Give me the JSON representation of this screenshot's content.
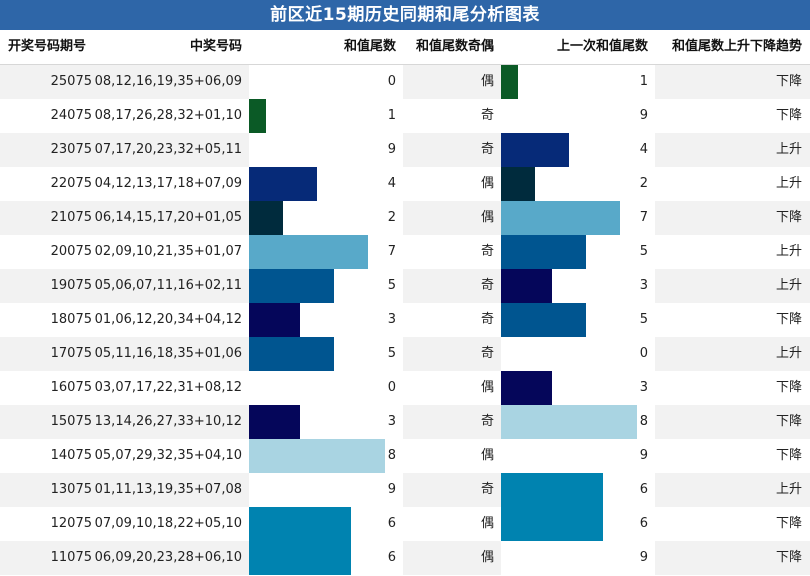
{
  "title": "前区近15期历史同期和尾分析图表",
  "headers": [
    "开奖号码期号",
    "中奖号码",
    "和值尾数",
    "和值尾数奇偶",
    "上一次和值尾数",
    "和值尾数上升下降趋势"
  ],
  "colors": {
    "title_bg": "#2e66a8",
    "tail_colors": {
      "0": "#0b5a26",
      "1": "#0b5a26",
      "2": "#002b3d",
      "3": "#05065a",
      "4": "#062a78",
      "5": "#005590",
      "6": "#0083b0",
      "7": "#58a9c9",
      "8": "#a9d4e2",
      "9": "#ffffff"
    }
  },
  "rows": [
    {
      "period": "25075",
      "numbers": "08,12,16,19,35+06,09",
      "tail": 0,
      "parity": "偶",
      "prev_tail": 1,
      "trend": "下降"
    },
    {
      "period": "24075",
      "numbers": "08,17,26,28,32+01,10",
      "tail": 1,
      "parity": "奇",
      "prev_tail": 9,
      "trend": "下降"
    },
    {
      "period": "23075",
      "numbers": "07,17,20,23,32+05,11",
      "tail": 9,
      "parity": "奇",
      "prev_tail": 4,
      "trend": "上升"
    },
    {
      "period": "22075",
      "numbers": "04,12,13,17,18+07,09",
      "tail": 4,
      "parity": "偶",
      "prev_tail": 2,
      "trend": "上升"
    },
    {
      "period": "21075",
      "numbers": "06,14,15,17,20+01,05",
      "tail": 2,
      "parity": "偶",
      "prev_tail": 7,
      "trend": "下降"
    },
    {
      "period": "20075",
      "numbers": "02,09,10,21,35+01,07",
      "tail": 7,
      "parity": "奇",
      "prev_tail": 5,
      "trend": "上升"
    },
    {
      "period": "19075",
      "numbers": "05,06,07,11,16+02,11",
      "tail": 5,
      "parity": "奇",
      "prev_tail": 3,
      "trend": "上升"
    },
    {
      "period": "18075",
      "numbers": "01,06,12,20,34+04,12",
      "tail": 3,
      "parity": "奇",
      "prev_tail": 5,
      "trend": "下降"
    },
    {
      "period": "17075",
      "numbers": "05,11,16,18,35+01,06",
      "tail": 5,
      "parity": "奇",
      "prev_tail": 0,
      "trend": "上升"
    },
    {
      "period": "16075",
      "numbers": "03,07,17,22,31+08,12",
      "tail": 0,
      "parity": "偶",
      "prev_tail": 3,
      "trend": "下降"
    },
    {
      "period": "15075",
      "numbers": "13,14,26,27,33+10,12",
      "tail": 3,
      "parity": "奇",
      "prev_tail": 8,
      "trend": "下降"
    },
    {
      "period": "14075",
      "numbers": "05,07,29,32,35+04,10",
      "tail": 8,
      "parity": "偶",
      "prev_tail": 9,
      "trend": "下降"
    },
    {
      "period": "13075",
      "numbers": "01,11,13,19,35+07,08",
      "tail": 9,
      "parity": "奇",
      "prev_tail": 6,
      "trend": "上升"
    },
    {
      "period": "12075",
      "numbers": "07,09,10,18,22+05,10",
      "tail": 6,
      "parity": "偶",
      "prev_tail": 6,
      "trend": "下降"
    },
    {
      "period": "11075",
      "numbers": "06,09,20,23,28+06,10",
      "tail": 6,
      "parity": "偶",
      "prev_tail": 9,
      "trend": "下降"
    }
  ]
}
